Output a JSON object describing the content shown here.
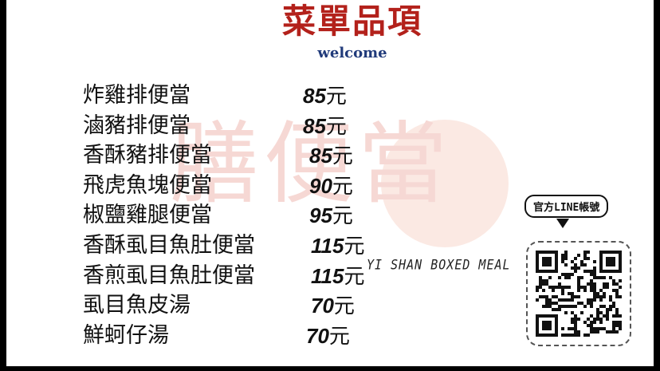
{
  "header": {
    "title": "菜單品項",
    "subtitle": "welcome"
  },
  "watermark": {
    "chinese": "膳便當",
    "english": "YI SHAN BOXED MEAL"
  },
  "menu": [
    {
      "name": "炸雞排便當",
      "price": "85",
      "unit": "元"
    },
    {
      "name": "滷豬排便當",
      "price": "85",
      "unit": "元"
    },
    {
      "name": "香酥豬排便當",
      "price": "85",
      "unit": "元"
    },
    {
      "name": "飛虎魚塊便當",
      "price": "90",
      "unit": "元"
    },
    {
      "name": "椒鹽雞腿便當",
      "price": "95",
      "unit": "元"
    },
    {
      "name": "香酥虱目魚肚便當",
      "price": "115",
      "unit": "元"
    },
    {
      "name": "香煎虱目魚肚便當",
      "price": "115",
      "unit": "元"
    },
    {
      "name": "虱目魚皮湯",
      "price": "70",
      "unit": "元"
    },
    {
      "name": "鮮蚵仔湯",
      "price": "70",
      "unit": "元"
    }
  ],
  "line": {
    "label": "官方LINE帳號",
    "qr_icon": "qr-code-icon"
  },
  "colors": {
    "title": "#b3211b",
    "subtitle": "#203a7a",
    "watermark": "#f6d8d4"
  }
}
